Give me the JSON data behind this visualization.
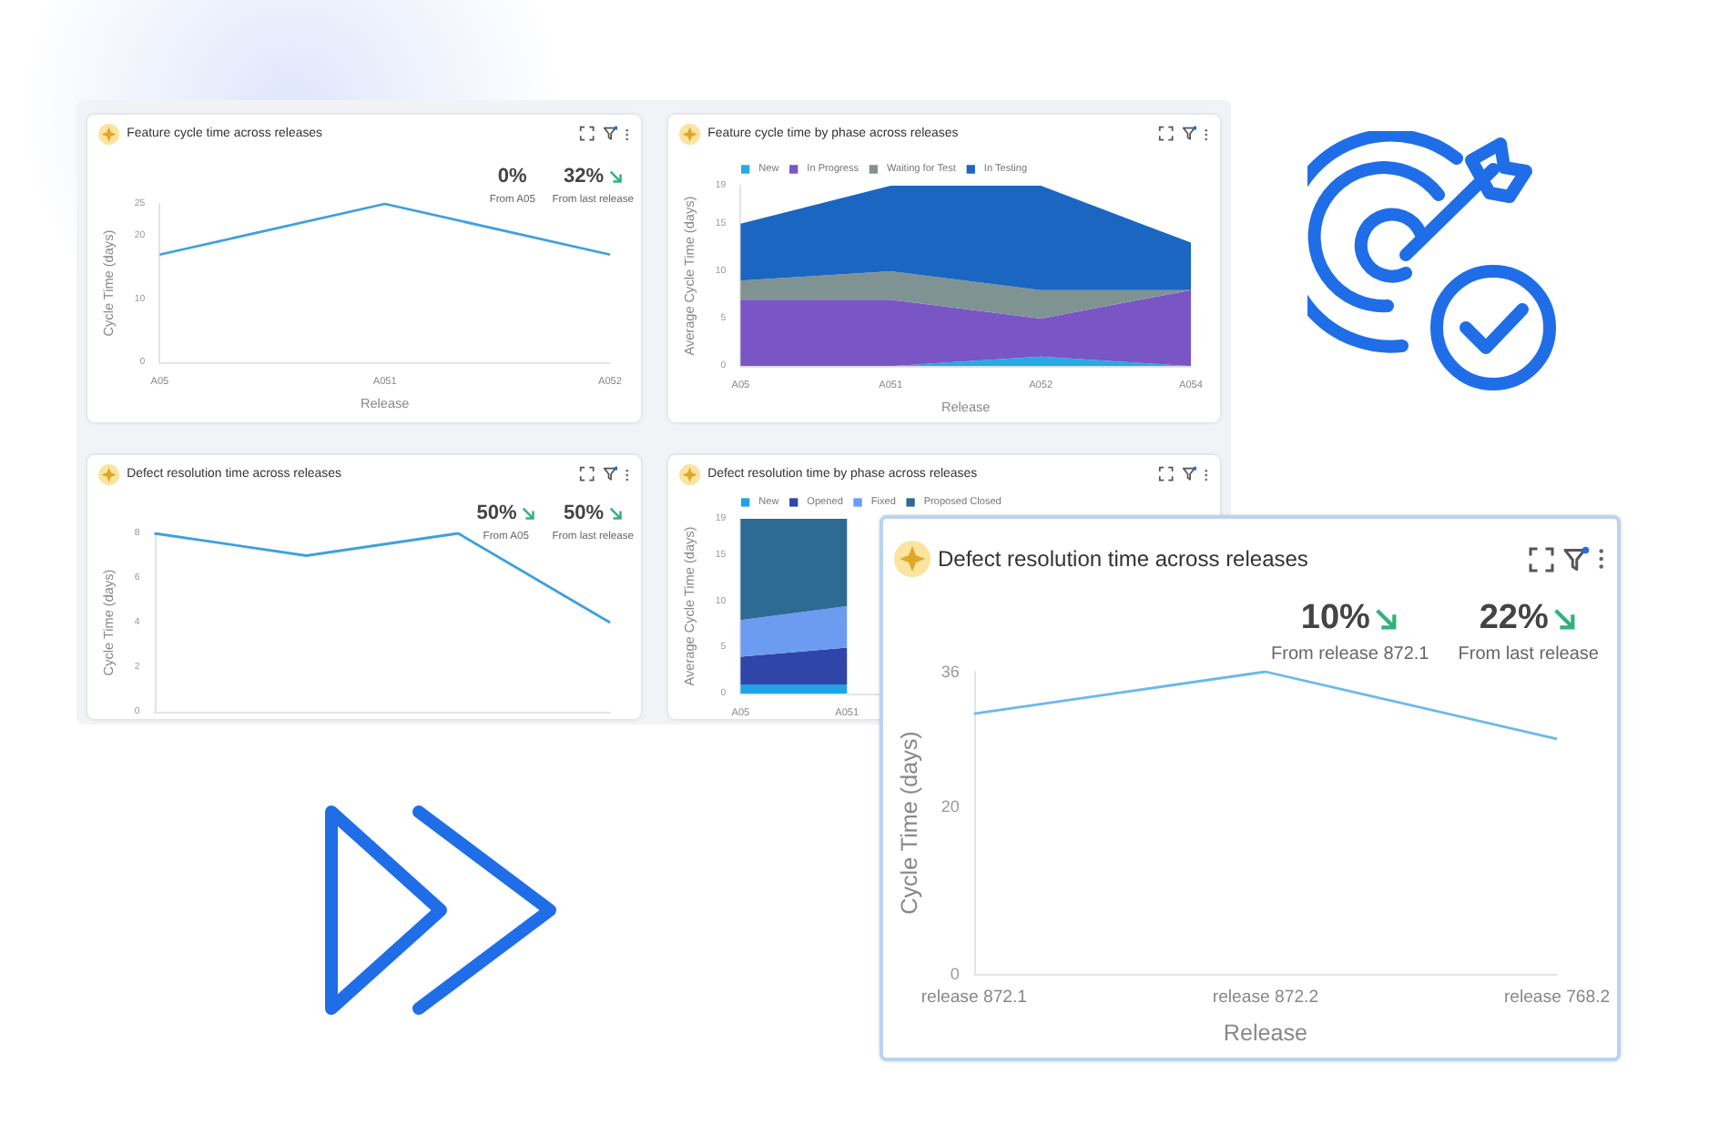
{
  "chart_data": [
    {
      "type": "line",
      "title": "Feature cycle time across releases",
      "xlabel": "Release",
      "ylabel": "Cycle Time (days)",
      "categories": [
        "A05",
        "A051",
        "A052"
      ],
      "values": [
        17,
        25,
        17
      ],
      "color": "#3fa0de",
      "ylim": [
        0,
        25
      ],
      "yticks": [
        0,
        10,
        20,
        25
      ],
      "marker": "none",
      "legend": false,
      "annotations": [
        "0%",
        "From A05",
        "32%",
        "From last release"
      ]
    },
    {
      "type": "area",
      "stacked": true,
      "title": "Feature cycle time by phase across releases",
      "xlabel": "Release",
      "ylabel": "Average Cycle Time (days)",
      "categories": [
        "A05",
        "A051",
        "A052",
        "A054"
      ],
      "legend": "top left",
      "ylim": [
        0,
        19
      ],
      "yticks": [
        0,
        5,
        10,
        15,
        19
      ],
      "series": [
        {
          "name": "New",
          "color": "#27a9e8",
          "values": [
            0,
            0,
            1,
            0
          ]
        },
        {
          "name": "In Progress",
          "color": "#7a55c6",
          "values": [
            7,
            7,
            4,
            8
          ]
        },
        {
          "name": "Waiting for Test",
          "color": "#7f9393",
          "values": [
            2,
            3,
            3,
            0
          ]
        },
        {
          "name": "In Testing",
          "color": "#1b66c1",
          "values": [
            6,
            9,
            11,
            5
          ]
        }
      ]
    },
    {
      "type": "line",
      "title": "Defect resolution time across releases",
      "ylabel": "Cycle Time (days)",
      "categories": [
        null,
        null,
        null,
        null
      ],
      "values": [
        8,
        7,
        8,
        4
      ],
      "color": "#3fa0de",
      "ylim": [
        0,
        8
      ],
      "yticks": [
        0,
        2,
        4,
        6,
        8
      ],
      "tick_labels": "y",
      "marker": "none",
      "legend": false,
      "annotations": [
        "50%",
        "From A05",
        "50%",
        "From last release"
      ]
    },
    {
      "type": "area",
      "stacked": true,
      "title": "Defect resolution time by phase across releases",
      "ylabel": "Average Cycle Time (days)",
      "categories": [
        "A05",
        "A051",
        null,
        null
      ],
      "legend": "top left",
      "ylim": [
        0,
        19
      ],
      "yticks": [
        0,
        5,
        10,
        15,
        19
      ],
      "series": [
        {
          "name": "New",
          "color": "#1fa3e6",
          "values": [
            1,
            1,
            null,
            null
          ]
        },
        {
          "name": "Opened",
          "color": "#2f45a8",
          "values": [
            3,
            4,
            null,
            null
          ]
        },
        {
          "name": "Fixed",
          "color": "#6b9cf2",
          "values": [
            4,
            4.5,
            null,
            null
          ]
        },
        {
          "name": "Proposed Closed",
          "color": "#2d6a94",
          "values": [
            11,
            9.5,
            null,
            null
          ]
        }
      ]
    },
    {
      "type": "line",
      "title": "Defect resolution time across releases",
      "xlabel": "Release",
      "ylabel": "Cycle Time (days)",
      "categories": [
        "release 872.1",
        "release 872.2",
        "release 768.2"
      ],
      "values": [
        31,
        36,
        28
      ],
      "color": "#6cb9ea",
      "ylim": [
        0,
        36
      ],
      "yticks": [
        0,
        20,
        36
      ],
      "marker": "none",
      "legend": false,
      "annotations": [
        "10%",
        "From release 872.1",
        "22%",
        "From last release"
      ]
    }
  ]
}
